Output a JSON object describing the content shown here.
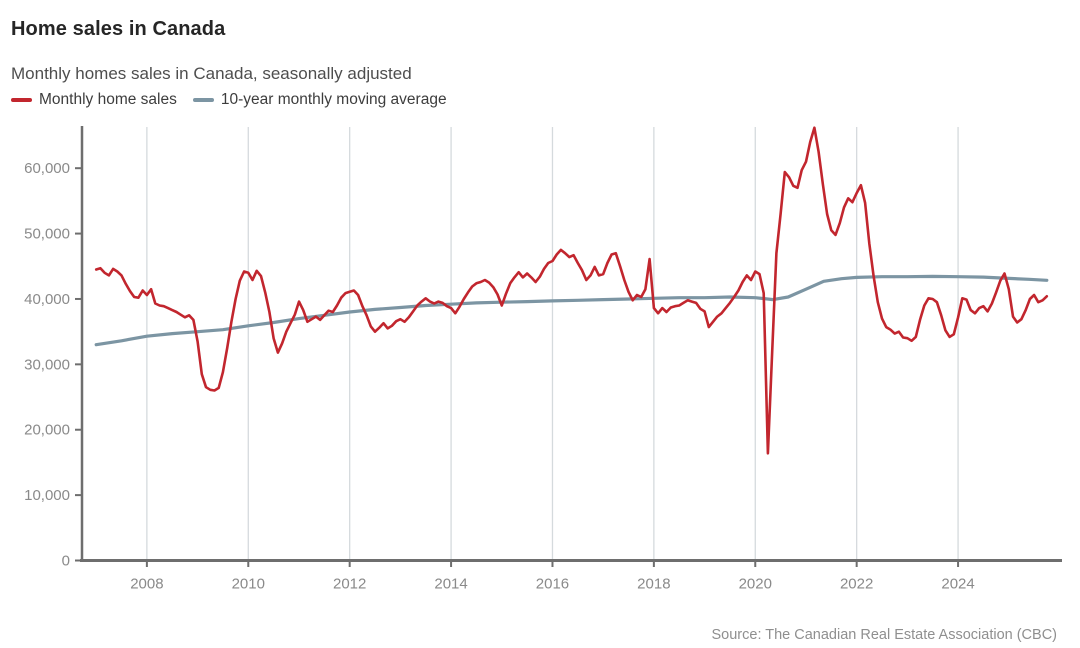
{
  "header": {
    "title": "Home sales in Canada",
    "subtitle": "Monthly homes sales in Canada, seasonally adjusted"
  },
  "legend": {
    "items": [
      {
        "label": "Monthly home sales",
        "color": "#c2262e",
        "icon": "red-line-swatch"
      },
      {
        "label": "10-year monthly moving average",
        "color": "#7c95a3",
        "icon": "gray-blue-line-swatch"
      }
    ]
  },
  "footer": {
    "source": "Source: The Canadian Real Estate Association (CBC)"
  },
  "colors": {
    "monthly_sales_line": "#c2262e",
    "moving_average_line": "#7c95a3",
    "axis": "#6e6e6e",
    "gridline": "#d5dadd",
    "tick_label": "#8a8a8a"
  },
  "chart_data": {
    "type": "line",
    "title": "Home sales in Canada",
    "subtitle": "Monthly homes sales in Canada, seasonally adjusted",
    "grid": "vertical-only",
    "legend_position": "top-left",
    "x_axis": {
      "range": [
        2006.74,
        2026.05
      ],
      "tick_years": [
        2008,
        2010,
        2012,
        2014,
        2016,
        2018,
        2020,
        2022,
        2024
      ],
      "tick_labels": [
        "2008",
        "2010",
        "2012",
        "2014",
        "2016",
        "2018",
        "2020",
        "2022",
        "2024"
      ]
    },
    "y_axis": {
      "range": [
        0,
        66300
      ],
      "tick_values": [
        0,
        10000,
        20000,
        30000,
        40000,
        50000,
        60000
      ],
      "tick_labels": [
        "0",
        "10,000",
        "20,000",
        "30,000",
        "40,000",
        "50,000",
        "60,000"
      ]
    },
    "series": [
      {
        "name": "Monthly home sales",
        "color": "#c2262e",
        "start_year": 2007,
        "points_per_year": 12,
        "values": [
          44500,
          44700,
          44000,
          43600,
          44600,
          44200,
          43600,
          42300,
          41200,
          40300,
          40200,
          41300,
          40600,
          41500,
          39300,
          39000,
          38900,
          38600,
          38300,
          38000,
          37600,
          37200,
          37500,
          36800,
          33500,
          28500,
          26500,
          26100,
          26000,
          26400,
          28800,
          32500,
          36500,
          40000,
          42800,
          44200,
          44000,
          42900,
          44300,
          43500,
          41000,
          38000,
          34000,
          31800,
          33200,
          35000,
          36300,
          37600,
          39600,
          38300,
          36500,
          36900,
          37300,
          36800,
          37500,
          38200,
          38000,
          39000,
          40200,
          40900,
          41100,
          41300,
          40600,
          38900,
          37500,
          35800,
          35000,
          35600,
          36300,
          35500,
          35900,
          36600,
          36900,
          36500,
          37200,
          38100,
          39000,
          39600,
          40100,
          39600,
          39300,
          39600,
          39400,
          38900,
          38600,
          37800,
          38800,
          40000,
          41000,
          41900,
          42400,
          42600,
          42900,
          42500,
          41800,
          40700,
          39000,
          40800,
          42400,
          43300,
          44100,
          43300,
          43900,
          43300,
          42600,
          43400,
          44600,
          45500,
          45800,
          46800,
          47500,
          47000,
          46400,
          46700,
          45500,
          44400,
          42900,
          43600,
          44900,
          43600,
          43800,
          45500,
          46800,
          47000,
          45000,
          42900,
          41100,
          39800,
          40600,
          40300,
          41500,
          46100,
          38600,
          37800,
          38600,
          38000,
          38700,
          38900,
          39000,
          39400,
          39800,
          39600,
          39400,
          38500,
          38100,
          35700,
          36500,
          37300,
          37800,
          38600,
          39400,
          40300,
          41300,
          42600,
          43600,
          42900,
          44200,
          43800,
          40900,
          16400,
          32000,
          47000,
          53000,
          59400,
          58600,
          57300,
          57000,
          59700,
          61000,
          64000,
          66200,
          62500,
          57500,
          53000,
          50500,
          49800,
          51600,
          54000,
          55400,
          54800,
          56200,
          57400,
          54700,
          48500,
          43500,
          39500,
          37000,
          35700,
          35300,
          34700,
          35000,
          34100,
          34000,
          33600,
          34200,
          36800,
          39000,
          40100,
          40000,
          39500,
          37500,
          35200,
          34200,
          34600,
          37200,
          40100,
          39900,
          38300,
          37800,
          38600,
          38900,
          38100,
          39300,
          41000,
          42800,
          43900,
          41500,
          37300,
          36400,
          36900,
          38300,
          40000,
          40600,
          39500,
          39800,
          40400
        ]
      },
      {
        "name": "10-year monthly moving average",
        "color": "#7c95a3",
        "points": [
          [
            2007.0,
            33000
          ],
          [
            2007.5,
            33600
          ],
          [
            2008.0,
            34300
          ],
          [
            2008.5,
            34700
          ],
          [
            2009.0,
            35000
          ],
          [
            2009.5,
            35300
          ],
          [
            2010.0,
            35900
          ],
          [
            2010.5,
            36400
          ],
          [
            2011.0,
            37000
          ],
          [
            2011.5,
            37500
          ],
          [
            2012.0,
            38000
          ],
          [
            2012.5,
            38400
          ],
          [
            2013.0,
            38700
          ],
          [
            2013.5,
            39000
          ],
          [
            2014.0,
            39200
          ],
          [
            2014.5,
            39400
          ],
          [
            2015.0,
            39500
          ],
          [
            2015.5,
            39600
          ],
          [
            2016.0,
            39700
          ],
          [
            2016.5,
            39800
          ],
          [
            2017.0,
            39900
          ],
          [
            2017.5,
            40000
          ],
          [
            2018.0,
            40100
          ],
          [
            2018.5,
            40200
          ],
          [
            2019.0,
            40200
          ],
          [
            2019.5,
            40300
          ],
          [
            2020.0,
            40200
          ],
          [
            2020.35,
            39900
          ],
          [
            2020.65,
            40300
          ],
          [
            2021.0,
            41500
          ],
          [
            2021.35,
            42700
          ],
          [
            2021.7,
            43100
          ],
          [
            2022.0,
            43300
          ],
          [
            2022.5,
            43400
          ],
          [
            2023.0,
            43400
          ],
          [
            2023.5,
            43450
          ],
          [
            2024.0,
            43400
          ],
          [
            2024.5,
            43350
          ],
          [
            2025.0,
            43150
          ],
          [
            2025.4,
            43000
          ],
          [
            2025.75,
            42850
          ]
        ]
      }
    ]
  }
}
